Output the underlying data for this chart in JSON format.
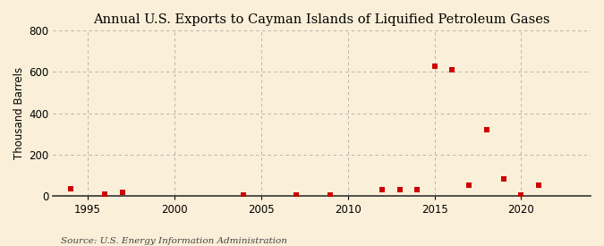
{
  "title": "Annual U.S. Exports to Cayman Islands of Liquified Petroleum Gases",
  "ylabel": "Thousand Barrels",
  "source": "Source: U.S. Energy Information Administration",
  "background_color": "#faefd8",
  "plot_bg_color": "#faefd8",
  "marker_color": "#cc0000",
  "marker_size": 4,
  "years": [
    1994,
    1996,
    1997,
    2004,
    2007,
    2009,
    2012,
    2013,
    2014,
    2015,
    2016,
    2017,
    2018,
    2019,
    2020,
    2021
  ],
  "values": [
    35,
    8,
    15,
    5,
    5,
    5,
    30,
    30,
    30,
    630,
    610,
    50,
    320,
    80,
    5,
    50
  ],
  "xlim": [
    1993,
    2024
  ],
  "ylim": [
    0,
    800
  ],
  "yticks": [
    0,
    200,
    400,
    600,
    800
  ],
  "xticks": [
    1995,
    2000,
    2005,
    2010,
    2015,
    2020
  ],
  "grid_color": "#aaaaaa",
  "grid_linestyle": "--",
  "title_fontsize": 10.5,
  "label_fontsize": 8.5,
  "tick_fontsize": 8.5,
  "source_fontsize": 7.5
}
